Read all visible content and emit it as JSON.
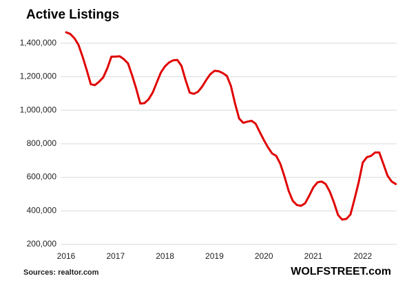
{
  "chart_data": {
    "type": "line",
    "title": "Active Listings",
    "source": "Sources: realtor.com",
    "brand": "WOLFSTREET.com",
    "categories": [
      "2016",
      null,
      null,
      null,
      null,
      null,
      null,
      null,
      null,
      null,
      null,
      null,
      "2017",
      null,
      null,
      null,
      null,
      null,
      null,
      null,
      null,
      null,
      null,
      null,
      "2018",
      null,
      null,
      null,
      null,
      null,
      null,
      null,
      null,
      null,
      null,
      null,
      "2019",
      null,
      null,
      null,
      null,
      null,
      null,
      null,
      null,
      null,
      null,
      null,
      "2020",
      null,
      null,
      null,
      null,
      null,
      null,
      null,
      null,
      null,
      null,
      null,
      "2021",
      null,
      null,
      null,
      null,
      null,
      null,
      null,
      null,
      null,
      null,
      null,
      "2022",
      null,
      null,
      null,
      null,
      null,
      null,
      null,
      null
    ],
    "series": [
      {
        "name": "Active Listings",
        "color": "#e00000",
        "values": [
          1465000,
          1455000,
          1430000,
          1390000,
          1320000,
          1240000,
          1155000,
          1150000,
          1170000,
          1195000,
          1250000,
          1320000,
          1320000,
          1322000,
          1305000,
          1280000,
          1210000,
          1130000,
          1040000,
          1042000,
          1065000,
          1105000,
          1165000,
          1225000,
          1262000,
          1285000,
          1298000,
          1300000,
          1265000,
          1180000,
          1105000,
          1098000,
          1110000,
          1140000,
          1180000,
          1215000,
          1235000,
          1233000,
          1222000,
          1205000,
          1145000,
          1040000,
          950000,
          925000,
          932000,
          937000,
          920000,
          870000,
          822000,
          778000,
          742000,
          728000,
          680000,
          605000,
          520000,
          460000,
          435000,
          430000,
          445000,
          490000,
          540000,
          570000,
          575000,
          560000,
          515000,
          450000,
          375000,
          348000,
          352000,
          378000,
          470000,
          570000,
          688000,
          720000,
          728000,
          748000,
          748000,
          680000,
          610000,
          575000,
          560000
        ]
      }
    ],
    "ylim": [
      200000,
      1600000
    ],
    "yticks": [
      {
        "value": 200000,
        "label": "200,000"
      },
      {
        "value": 400000,
        "label": "400,000"
      },
      {
        "value": 600000,
        "label": "600,000"
      },
      {
        "value": 800000,
        "label": "800,000"
      },
      {
        "value": 1000000,
        "label": "1,000,000"
      },
      {
        "value": 1200000,
        "label": "1,200,000"
      },
      {
        "value": 1400000,
        "label": "1,400,000"
      }
    ],
    "grid": true
  }
}
